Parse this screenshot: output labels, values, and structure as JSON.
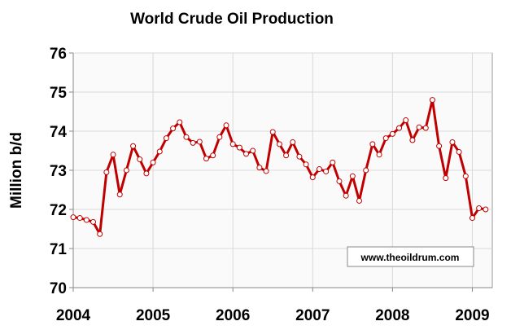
{
  "chart_data": {
    "type": "line",
    "title": "World Crude Oil Production",
    "xlabel": "",
    "ylabel": "Million b/d",
    "xlim": [
      2004,
      2009.25
    ],
    "ylim": [
      70,
      76
    ],
    "x_ticks": [
      "2004",
      "2005",
      "2006",
      "2007",
      "2008",
      "2009"
    ],
    "y_ticks": [
      "70",
      "71",
      "72",
      "73",
      "74",
      "75",
      "76"
    ],
    "grid": true,
    "annotation": "www.theoildrum.com",
    "colors": {
      "line": "#c00000",
      "marker_fill": "#ffffff",
      "plot_bg": "#fafafa",
      "grid": "#d9d9d9"
    },
    "series": [
      {
        "start": "2004-01",
        "frequency": "monthly",
        "values": [
          71.8,
          71.78,
          71.73,
          71.68,
          71.37,
          72.95,
          73.4,
          72.38,
          73.0,
          73.62,
          73.28,
          72.92,
          73.2,
          73.48,
          73.82,
          74.07,
          74.23,
          73.85,
          73.7,
          73.73,
          73.3,
          73.38,
          73.85,
          74.15,
          73.67,
          73.58,
          73.42,
          73.5,
          73.07,
          72.98,
          73.98,
          73.67,
          73.38,
          73.72,
          73.35,
          73.15,
          72.82,
          73.03,
          72.97,
          73.2,
          72.72,
          72.35,
          72.85,
          72.22,
          73.0,
          73.67,
          73.4,
          73.82,
          73.93,
          74.08,
          74.28,
          73.77,
          74.1,
          74.08,
          74.8,
          73.62,
          72.8,
          73.72,
          73.47,
          72.85,
          71.78,
          72.03,
          72.0
        ]
      }
    ]
  }
}
